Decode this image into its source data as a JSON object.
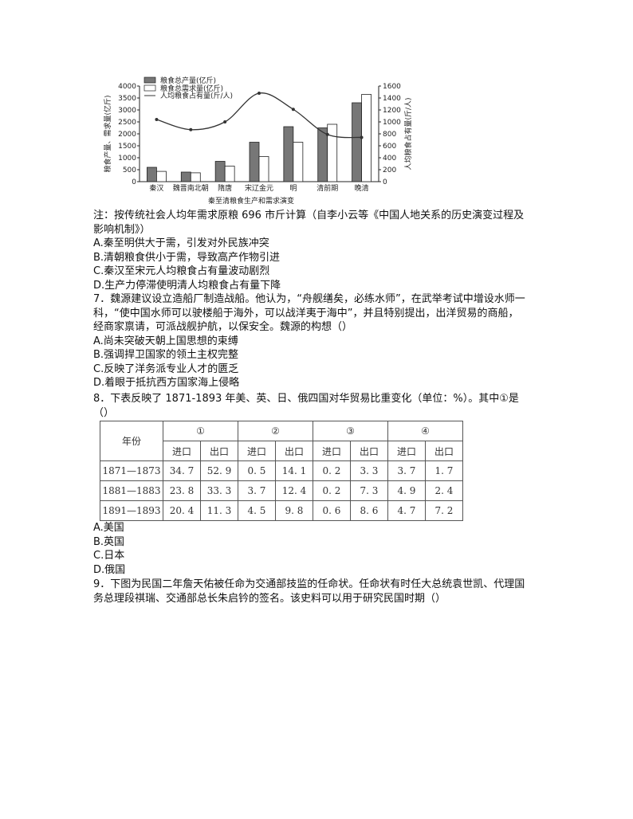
{
  "chart_data": {
    "type": "bar+line",
    "title": "秦至清粮食生产和需求演变",
    "categories": [
      "秦汉",
      "魏晋南北朝",
      "隋唐",
      "宋辽金元",
      "明",
      "清前期",
      "晚清"
    ],
    "ylabel": "粮食产量、需求量(亿斤)",
    "y2label": "人均粮食占有量(斤/人)",
    "ylim": [
      0,
      4000
    ],
    "yticks": [
      0,
      500,
      1000,
      1500,
      2000,
      2500,
      3000,
      3500,
      4000
    ],
    "y2lim": [
      0,
      1600
    ],
    "y2ticks": [
      0,
      200,
      400,
      600,
      800,
      1000,
      1200,
      1400,
      1600
    ],
    "legend_position": "top-left",
    "series": [
      {
        "name": "粮食总产量(亿斤)",
        "type": "bar",
        "axis": "left",
        "color": "#777777",
        "values": [
          600,
          400,
          850,
          1650,
          2300,
          2250,
          3300
        ]
      },
      {
        "name": "粮食总需求量(亿斤)",
        "type": "bar",
        "axis": "left",
        "color": "#ffffff",
        "values": [
          430,
          370,
          650,
          1050,
          1650,
          2400,
          3650
        ]
      },
      {
        "name": "人均粮食占有量(斤/人)",
        "type": "line",
        "axis": "right",
        "color": "#333333",
        "values": [
          1040,
          870,
          1000,
          1480,
          1210,
          790,
          740
        ]
      }
    ]
  },
  "note": {
    "line1": "注：按传统社会人均年需求原粮 696 市斤计算（自李小云等《中国人地关系的历史演变过程及",
    "line2": "影响机制》）"
  },
  "q6_options": [
    "A.秦至明供大于需，引发对外民族冲突",
    "B.清朝粮食供小于需，导致高产作物引进",
    "C.秦汉至宋元人均粮食占有量波动剧烈",
    "D.生产力停滞使明清人均粮食占有量下降"
  ],
  "q7": {
    "lines": [
      "7．魏源建议设立造船厂制造战船。他认为，“舟舰缮矣，必练水师”，在武举考试中增设水师一",
      "科，“使中国水师可以驶楼船于海外，可以战洋夷于海中”，并且特别提出，出洋贸易的商船，",
      "经商家禀请，可派战舰护航，以保安全。魏源的构想（）"
    ],
    "options": [
      "A.尚未突破天朝上国思想的束缚",
      "B.强调捍卫国家的领土主权完整",
      "C.反映了洋务派专业人才的匮乏",
      "D.着眼于抵抗西方国家海上侵略"
    ]
  },
  "q8": {
    "lines": [
      "8．下表反映了 1871-1893 年美、英、日、俄四国对华贸易比重变化（单位：%）。其中①是",
      "（）"
    ],
    "table": {
      "year_header": "年份",
      "groups": [
        "①",
        "②",
        "③",
        "④"
      ],
      "sub": [
        "进口",
        "出口"
      ],
      "rows": [
        {
          "year": "1871—1873",
          "values": [
            "34. 7",
            "52. 9",
            "0. 5",
            "14. 1",
            "0. 2",
            "3. 3",
            "3. 7",
            "1. 7"
          ]
        },
        {
          "year": "1881—1883",
          "values": [
            "23. 8",
            "33. 3",
            "3. 7",
            "12. 4",
            "0. 2",
            "7. 3",
            "4. 9",
            "2. 4"
          ]
        },
        {
          "year": "1891—1893",
          "values": [
            "20. 4",
            "11. 3",
            "4. 5",
            "9. 8",
            "0. 6",
            "8. 6",
            "4. 7",
            "7. 2"
          ]
        }
      ]
    },
    "options": [
      "A.美国",
      "B.英国",
      "C.日本",
      "D.俄国"
    ]
  },
  "q9": {
    "lines": [
      "9．下图为民国二年詹天佑被任命为交通部技监的任命状。任命状有时任大总统袁世凯、代理国",
      "务总理段祺瑞、交通部总长朱启钤的签名。该史料可以用于研究民国时期（）"
    ]
  }
}
